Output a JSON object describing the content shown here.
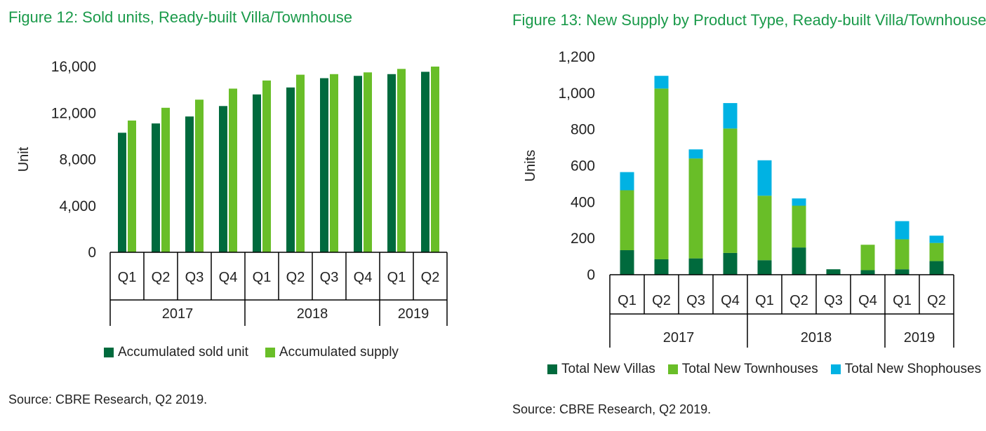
{
  "figure12": {
    "title": "Figure 12: Sold units, Ready-built Villa/Townhouse",
    "source": "Source: CBRE Research, Q2 2019."
  },
  "figure13": {
    "title": "Figure 13: New Supply by Product Type, Ready-built Villa/Townhouse",
    "source": "Source: CBRE Research, Q2 2019."
  },
  "chart_data": [
    {
      "type": "bar",
      "title": "Figure 12: Sold units, Ready-built Villa/Townhouse",
      "ylabel": "Unit",
      "ylim": [
        0,
        16000
      ],
      "yticks": [
        0,
        4000,
        8000,
        12000,
        16000
      ],
      "ytick_labels": [
        "0",
        "4,000",
        "8,000",
        "12,000",
        "16,000"
      ],
      "categories": [
        "Q1",
        "Q2",
        "Q3",
        "Q4",
        "Q1",
        "Q2",
        "Q3",
        "Q4",
        "Q1",
        "Q2"
      ],
      "groups": [
        {
          "label": "2017",
          "count": 4
        },
        {
          "label": "2018",
          "count": 4
        },
        {
          "label": "2019",
          "count": 2
        }
      ],
      "series": [
        {
          "name": "Accumulated sold unit",
          "color": "#006a3d",
          "values": [
            10300,
            11100,
            11700,
            12600,
            13600,
            14200,
            15000,
            15200,
            15350,
            15550
          ]
        },
        {
          "name": "Accumulated supply",
          "color": "#69be28",
          "values": [
            11350,
            12450,
            13150,
            14100,
            14800,
            15300,
            15350,
            15500,
            15800,
            16000
          ]
        }
      ],
      "grid": false,
      "legend": "bottom"
    },
    {
      "type": "bar",
      "stacked": true,
      "title": "Figure 13: New Supply by Product Type, Ready-built Villa/Townhouse",
      "ylabel": "Units",
      "ylim": [
        0,
        1200
      ],
      "yticks": [
        0,
        200,
        400,
        600,
        800,
        1000,
        1200
      ],
      "ytick_labels": [
        "0",
        "200",
        "400",
        "600",
        "800",
        "1,000",
        "1,200"
      ],
      "categories": [
        "Q1",
        "Q2",
        "Q3",
        "Q4",
        "Q1",
        "Q2",
        "Q3",
        "Q4",
        "Q1",
        "Q2"
      ],
      "groups": [
        {
          "label": "2017",
          "count": 4
        },
        {
          "label": "2018",
          "count": 4
        },
        {
          "label": "2019",
          "count": 2
        }
      ],
      "series": [
        {
          "name": "Total New Villas",
          "color": "#006a3d",
          "values": [
            135,
            85,
            90,
            120,
            80,
            150,
            30,
            25,
            30,
            75
          ]
        },
        {
          "name": "Total New Townhouses",
          "color": "#69be28",
          "values": [
            330,
            940,
            550,
            685,
            355,
            230,
            0,
            140,
            165,
            100
          ]
        },
        {
          "name": "Total New Shophouses",
          "color": "#00b2e3",
          "values": [
            100,
            70,
            50,
            140,
            195,
            40,
            0,
            0,
            100,
            40
          ]
        }
      ],
      "grid": false,
      "legend": "bottom"
    }
  ]
}
